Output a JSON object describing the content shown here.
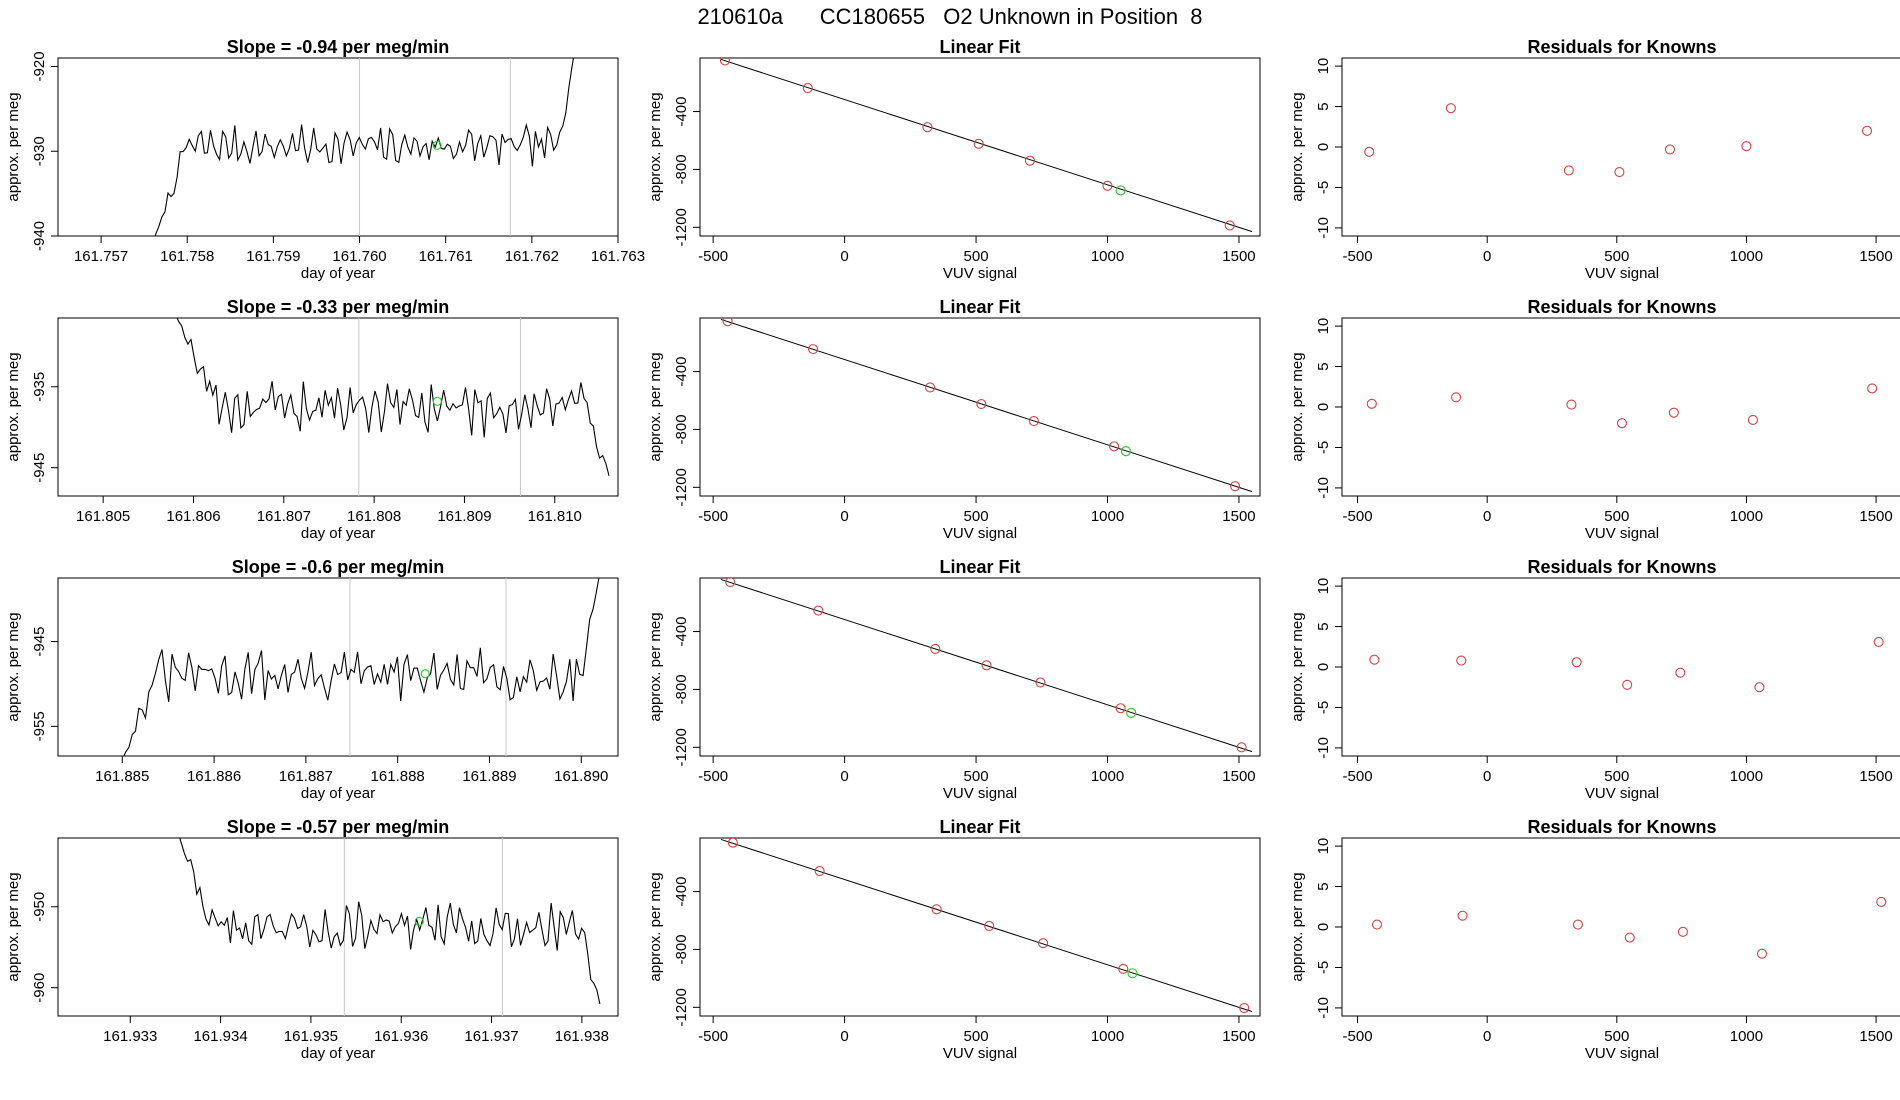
{
  "figure": {
    "title": "210610a      CC180655   O2 Unknown in Position  8",
    "colors": {
      "trace": "#000000",
      "vline": "#c8c8c8",
      "known_point": "#d94040",
      "unknown_point": "#33cc33",
      "frame": "#000000"
    }
  },
  "chart_data": [
    {
      "type": "line",
      "row": 1,
      "col": 1,
      "title": "Slope =  -0.94  per meg/min",
      "xlabel": "day of year",
      "ylabel": "approx. per meg",
      "xlim": [
        161.7565,
        161.763
      ],
      "ylim": [
        -940,
        -919
      ],
      "xticks": [
        161.757,
        161.758,
        161.759,
        161.76,
        161.761,
        161.762,
        161.763
      ],
      "xtick_labels": [
        "161.757",
        "161.758",
        "161.759",
        "161.760",
        "161.761",
        "161.762",
        "161.763"
      ],
      "yticks": [
        -940,
        -930,
        -920
      ],
      "ytick_labels": [
        "-940",
        "-930",
        "-920"
      ],
      "trace": {
        "start_x": 161.7576,
        "end_x": 161.7625,
        "n": 140,
        "base": -929.4,
        "amp": 1.6,
        "seed": 7,
        "start_from": -941,
        "ramp": 0.08,
        "end_to": -918,
        "end_ramp": 0.04
      },
      "vlines": [
        161.76,
        161.76175
      ],
      "marker": {
        "x": 161.7609,
        "y": -929.3
      }
    },
    {
      "type": "scatter",
      "row": 1,
      "col": 2,
      "title": "Linear Fit",
      "xlabel": "VUV signal",
      "ylabel": "approx. per meg",
      "xlim": [
        -550,
        1580
      ],
      "ylim": [
        -1260,
        -30
      ],
      "xticks": [
        -500,
        0,
        500,
        1000,
        1500
      ],
      "xtick_labels": [
        "-500",
        "0",
        "500",
        "1000",
        "1500"
      ],
      "yticks": [
        -1200,
        -800,
        -400
      ],
      "ytick_labels": [
        "-1200",
        "-800",
        "-400"
      ],
      "line": {
        "x": [
          -470,
          1550
        ],
        "y": [
          -40,
          -1230
        ]
      },
      "knowns": [
        [
          -455,
          -47
        ],
        [
          -140,
          -238
        ],
        [
          315,
          -508
        ],
        [
          510,
          -623
        ],
        [
          705,
          -740
        ],
        [
          1000,
          -913
        ],
        [
          1465,
          -1187
        ]
      ],
      "unknown": [
        1050,
        -945
      ]
    },
    {
      "type": "scatter",
      "row": 1,
      "col": 3,
      "title": "Residuals for Knowns",
      "xlabel": "VUV signal",
      "ylabel": "approx. per meg",
      "xlim": [
        -560,
        1600
      ],
      "ylim": [
        -11,
        11
      ],
      "xticks": [
        -500,
        0,
        500,
        1000,
        1500
      ],
      "xtick_labels": [
        "-500",
        "0",
        "500",
        "1000",
        "1500"
      ],
      "yticks": [
        -10,
        -5,
        0,
        5,
        10
      ],
      "ytick_labels": [
        "-10",
        "-5",
        "0",
        "5",
        "10"
      ],
      "knowns": [
        [
          -455,
          -0.6
        ],
        [
          -140,
          4.8
        ],
        [
          315,
          -2.9
        ],
        [
          510,
          -3.1
        ],
        [
          705,
          -0.3
        ],
        [
          1000,
          0.1
        ],
        [
          1465,
          2.0
        ]
      ]
    },
    {
      "type": "line",
      "row": 2,
      "col": 1,
      "title": "Slope =  -0.33  per meg/min",
      "xlabel": "day of year",
      "ylabel": "approx. per meg",
      "xlim": [
        161.8045,
        161.8107
      ],
      "ylim": [
        -948.5,
        -926.5
      ],
      "xticks": [
        161.805,
        161.806,
        161.807,
        161.808,
        161.809,
        161.81
      ],
      "xtick_labels": [
        "161.805",
        "161.806",
        "161.807",
        "161.808",
        "161.809",
        "161.810"
      ],
      "yticks": [
        -945,
        -935
      ],
      "ytick_labels": [
        "-945",
        "-935"
      ],
      "trace": {
        "start_x": 161.8058,
        "end_x": 161.8106,
        "n": 140,
        "base": -937.5,
        "amp": 2.4,
        "seed": 19,
        "start_from": -926,
        "ramp": 0.1,
        "end_to": -946,
        "end_ramp": 0.05
      },
      "vlines": [
        161.80783,
        161.80962
      ],
      "marker": {
        "x": 161.8087,
        "y": -936.8
      }
    },
    {
      "type": "scatter",
      "row": 2,
      "col": 2,
      "title": "Linear Fit",
      "xlabel": "VUV signal",
      "ylabel": "approx. per meg",
      "xlim": [
        -550,
        1580
      ],
      "ylim": [
        -1260,
        -30
      ],
      "xticks": [
        -500,
        0,
        500,
        1000,
        1500
      ],
      "xtick_labels": [
        "-500",
        "0",
        "500",
        "1000",
        "1500"
      ],
      "yticks": [
        -1200,
        -800,
        -400
      ],
      "ytick_labels": [
        "-1200",
        "-800",
        "-400"
      ],
      "line": {
        "x": [
          -470,
          1550
        ],
        "y": [
          -40,
          -1230
        ]
      },
      "knowns": [
        [
          -445,
          -52
        ],
        [
          -120,
          -245
        ],
        [
          325,
          -510
        ],
        [
          520,
          -625
        ],
        [
          720,
          -742
        ],
        [
          1025,
          -917
        ],
        [
          1485,
          -1192
        ]
      ],
      "unknown": [
        1070,
        -950
      ]
    },
    {
      "type": "scatter",
      "row": 2,
      "col": 3,
      "title": "Residuals for Knowns",
      "xlabel": "VUV signal",
      "ylabel": "approx. per meg",
      "xlim": [
        -560,
        1600
      ],
      "ylim": [
        -11,
        11
      ],
      "xticks": [
        -500,
        0,
        500,
        1000,
        1500
      ],
      "xtick_labels": [
        "-500",
        "0",
        "500",
        "1000",
        "1500"
      ],
      "yticks": [
        -10,
        -5,
        0,
        5,
        10
      ],
      "ytick_labels": [
        "-10",
        "-5",
        "0",
        "5",
        "10"
      ],
      "knowns": [
        [
          -445,
          0.4
        ],
        [
          -120,
          1.2
        ],
        [
          325,
          0.3
        ],
        [
          520,
          -2.0
        ],
        [
          720,
          -0.7
        ],
        [
          1025,
          -1.6
        ],
        [
          1485,
          2.3
        ]
      ]
    },
    {
      "type": "line",
      "row": 3,
      "col": 1,
      "title": "Slope =  -0.6  per meg/min",
      "xlabel": "day of year",
      "ylabel": "approx. per meg",
      "xlim": [
        161.8843,
        161.8904
      ],
      "ylim": [
        -958.5,
        -937.5
      ],
      "xticks": [
        161.885,
        161.886,
        161.887,
        161.888,
        161.889,
        161.89
      ],
      "xtick_labels": [
        "161.885",
        "161.886",
        "161.887",
        "161.888",
        "161.889",
        "161.890"
      ],
      "yticks": [
        -955,
        -945
      ],
      "ytick_labels": [
        "-955",
        "-945"
      ],
      "trace": {
        "start_x": 161.885,
        "end_x": 161.8902,
        "n": 145,
        "base": -949.0,
        "amp": 2.2,
        "seed": 31,
        "start_from": -959,
        "ramp": 0.07,
        "end_to": -937,
        "end_ramp": 0.04
      },
      "vlines": [
        161.88748,
        161.88918
      ],
      "marker": {
        "x": 161.8883,
        "y": -948.8
      }
    },
    {
      "type": "scatter",
      "row": 3,
      "col": 2,
      "title": "Linear Fit",
      "xlabel": "VUV signal",
      "ylabel": "approx. per meg",
      "xlim": [
        -550,
        1580
      ],
      "ylim": [
        -1260,
        -30
      ],
      "xticks": [
        -500,
        0,
        500,
        1000,
        1500
      ],
      "xtick_labels": [
        "-500",
        "0",
        "500",
        "1000",
        "1500"
      ],
      "yticks": [
        -1200,
        -800,
        -400
      ],
      "ytick_labels": [
        "-1200",
        "-800",
        "-400"
      ],
      "line": {
        "x": [
          -470,
          1550
        ],
        "y": [
          -40,
          -1230
        ]
      },
      "knowns": [
        [
          -435,
          -58
        ],
        [
          -100,
          -255
        ],
        [
          345,
          -520
        ],
        [
          540,
          -633
        ],
        [
          745,
          -752
        ],
        [
          1050,
          -930
        ],
        [
          1510,
          -1200
        ]
      ],
      "unknown": [
        1090,
        -962
      ]
    },
    {
      "type": "scatter",
      "row": 3,
      "col": 3,
      "title": "Residuals for Knowns",
      "xlabel": "VUV signal",
      "ylabel": "approx. per meg",
      "xlim": [
        -560,
        1600
      ],
      "ylim": [
        -11,
        11
      ],
      "xticks": [
        -500,
        0,
        500,
        1000,
        1500
      ],
      "xtick_labels": [
        "-500",
        "0",
        "500",
        "1000",
        "1500"
      ],
      "yticks": [
        -10,
        -5,
        0,
        5,
        10
      ],
      "ytick_labels": [
        "-10",
        "-5",
        "0",
        "5",
        "10"
      ],
      "knowns": [
        [
          -435,
          0.9
        ],
        [
          -100,
          0.8
        ],
        [
          345,
          0.6
        ],
        [
          540,
          -2.2
        ],
        [
          745,
          -0.7
        ],
        [
          1050,
          -2.5
        ],
        [
          1510,
          3.1
        ]
      ]
    },
    {
      "type": "line",
      "row": 4,
      "col": 1,
      "title": "Slope =  -0.57  per meg/min",
      "xlabel": "day of year",
      "ylabel": "approx. per meg",
      "xlim": [
        161.9322,
        161.9384
      ],
      "ylim": [
        -963.5,
        -941.5
      ],
      "xticks": [
        161.933,
        161.934,
        161.935,
        161.936,
        161.937,
        161.938
      ],
      "xtick_labels": [
        "161.933",
        "161.934",
        "161.935",
        "161.936",
        "161.937",
        "161.938"
      ],
      "yticks": [
        -960,
        -950
      ],
      "ytick_labels": [
        "-960",
        "-950"
      ],
      "trace": {
        "start_x": 161.9335,
        "end_x": 161.9382,
        "n": 140,
        "base": -952.5,
        "amp": 2.0,
        "seed": 43,
        "start_from": -940,
        "ramp": 0.09,
        "end_to": -962,
        "end_ramp": 0.05
      },
      "vlines": [
        161.93537,
        161.93712
      ],
      "marker": {
        "x": 161.9362,
        "y": -951.8
      }
    },
    {
      "type": "scatter",
      "row": 4,
      "col": 2,
      "title": "Linear Fit",
      "xlabel": "VUV signal",
      "ylabel": "approx. per meg",
      "xlim": [
        -550,
        1580
      ],
      "ylim": [
        -1260,
        -30
      ],
      "xticks": [
        -500,
        0,
        500,
        1000,
        1500
      ],
      "xtick_labels": [
        "-500",
        "0",
        "500",
        "1000",
        "1500"
      ],
      "yticks": [
        -1200,
        -800,
        -400
      ],
      "ytick_labels": [
        "-1200",
        "-800",
        "-400"
      ],
      "line": {
        "x": [
          -470,
          1550
        ],
        "y": [
          -40,
          -1230
        ]
      },
      "knowns": [
        [
          -425,
          -62
        ],
        [
          -95,
          -258
        ],
        [
          350,
          -523
        ],
        [
          550,
          -638
        ],
        [
          755,
          -757
        ],
        [
          1060,
          -935
        ],
        [
          1520,
          -1205
        ]
      ],
      "unknown": [
        1095,
        -965
      ]
    },
    {
      "type": "scatter",
      "row": 4,
      "col": 3,
      "title": "Residuals for Knowns",
      "xlabel": "VUV signal",
      "ylabel": "approx. per meg",
      "xlim": [
        -560,
        1600
      ],
      "ylim": [
        -11,
        11
      ],
      "xticks": [
        -500,
        0,
        500,
        1000,
        1500
      ],
      "xtick_labels": [
        "-500",
        "0",
        "500",
        "1000",
        "1500"
      ],
      "yticks": [
        -10,
        -5,
        0,
        5,
        10
      ],
      "ytick_labels": [
        "-10",
        "-5",
        "0",
        "5",
        "10"
      ],
      "knowns": [
        [
          -425,
          0.3
        ],
        [
          -95,
          1.4
        ],
        [
          350,
          0.3
        ],
        [
          550,
          -1.3
        ],
        [
          755,
          -0.6
        ],
        [
          1060,
          -3.3
        ],
        [
          1520,
          3.1
        ]
      ]
    }
  ]
}
